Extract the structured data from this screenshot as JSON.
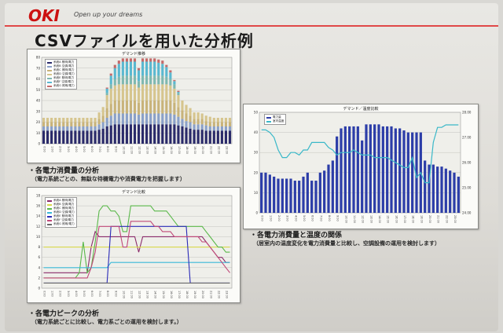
{
  "header": {
    "logo": "OKI",
    "tagline": "Open up your dreams",
    "accent": "#e04848"
  },
  "slide": {
    "title": "CSVファイルを用いた分析例"
  },
  "panels": {
    "consumption": {
      "title": "デマンド推移",
      "legend": [
        "系統A 照明/電力",
        "系統B 空調/電力",
        "系統C 照明/電力",
        "系統D 空調/電力",
        "系統E 照明/電力",
        "系統F 空調/電力",
        "系統G 照明/電力"
      ],
      "legend_colors": [
        "#2a2a6a",
        "#8aa0c8",
        "#c8b37a",
        "#d6c58e",
        "#7fb8b0",
        "#5ab8d0",
        "#c46a6a"
      ],
      "caption": "・各電力消費量の分析",
      "subcaption": "（電力系統ごとの、無駄な待機電力や消費電力を把握します）"
    },
    "peak": {
      "title": "デマンド比較",
      "legend": [
        "系統A 照明/電力",
        "系統B 空調/電力",
        "系統C 照明/電力",
        "系統D 空調/電力",
        "系統E 照明/電力",
        "系統F 空調/電力",
        "系統G 照明/電力"
      ],
      "legend_colors": [
        "#8a2a6a",
        "#d8d84a",
        "#5ab84a",
        "#38b8d8",
        "#2a2ab8",
        "#c04878",
        "#6a6a6a"
      ],
      "caption": "・各電力ピークの分析",
      "subcaption": "（電力系統ごとに比較し、電力系ごとの運用を検討します。）"
    },
    "temperature": {
      "title": "デマンド／温度比較",
      "legend": [
        "電力量",
        "室内温度"
      ],
      "legend_colors": [
        "#2c3da8",
        "#3ab8c8"
      ],
      "caption": "・各電力消費量と温度の関係",
      "subcaption": "（居室内の温度変化を電力消費量と比較し、空調設備の運用を検討します）"
    }
  },
  "chart_data": [
    {
      "type": "bar",
      "title": "デマンド推移",
      "stacked": true,
      "categories": [
        "0:00",
        "0:30",
        "1:00",
        "1:30",
        "2:00",
        "2:30",
        "3:00",
        "3:30",
        "4:00",
        "4:30",
        "5:00",
        "5:30",
        "6:00",
        "6:30",
        "7:00",
        "7:30",
        "8:00",
        "8:30",
        "9:00",
        "9:30",
        "10:00",
        "10:30",
        "11:00",
        "11:30",
        "12:00",
        "12:30",
        "13:00",
        "13:30",
        "14:00",
        "14:30",
        "15:00",
        "15:30",
        "16:00",
        "16:30",
        "17:00",
        "17:30",
        "18:00",
        "18:30",
        "19:00",
        "19:30",
        "20:00",
        "20:30",
        "21:00",
        "21:30",
        "22:00",
        "22:30",
        "23:00",
        "23:30"
      ],
      "series": [
        {
          "name": "系統A 照明/電力",
          "values": [
            12,
            12,
            12,
            12,
            12,
            12,
            12,
            12,
            12,
            12,
            12,
            12,
            12,
            12,
            13,
            14,
            16,
            17,
            18,
            18,
            18,
            18,
            18,
            18,
            18,
            18,
            18,
            18,
            18,
            18,
            18,
            18,
            18,
            18,
            17,
            16,
            15,
            14,
            13,
            13,
            13,
            12,
            12,
            12,
            12,
            12,
            12,
            12
          ]
        },
        {
          "name": "系統B 空調/電力",
          "values": [
            4,
            4,
            4,
            4,
            4,
            4,
            4,
            4,
            4,
            4,
            4,
            4,
            4,
            4,
            5,
            6,
            8,
            9,
            10,
            10,
            10,
            10,
            10,
            10,
            9,
            10,
            10,
            10,
            10,
            10,
            10,
            10,
            10,
            9,
            8,
            7,
            6,
            6,
            5,
            5,
            5,
            5,
            4,
            4,
            4,
            4,
            4,
            4
          ]
        },
        {
          "name": "系統C 照明/電力",
          "values": [
            4,
            4,
            4,
            4,
            4,
            4,
            4,
            4,
            4,
            4,
            4,
            4,
            4,
            4,
            5,
            6,
            9,
            11,
            12,
            12,
            12,
            12,
            12,
            12,
            11,
            12,
            12,
            12,
            12,
            12,
            12,
            12,
            12,
            11,
            9,
            8,
            7,
            6,
            5,
            5,
            5,
            4,
            4,
            4,
            4,
            4,
            4,
            4
          ]
        },
        {
          "name": "系統D 空調/電力",
          "values": [
            4,
            4,
            4,
            4,
            4,
            4,
            4,
            4,
            4,
            4,
            4,
            4,
            4,
            4,
            6,
            8,
            12,
            14,
            14,
            15,
            15,
            15,
            15,
            15,
            14,
            15,
            15,
            15,
            15,
            15,
            15,
            15,
            14,
            13,
            11,
            9,
            8,
            7,
            6,
            6,
            5,
            5,
            5,
            4,
            4,
            4,
            4,
            4
          ]
        },
        {
          "name": "系統E 照明/電力",
          "values": [
            0,
            0,
            0,
            0,
            0,
            0,
            0,
            0,
            0,
            0,
            0,
            0,
            0,
            0,
            0,
            0,
            2,
            4,
            6,
            7,
            8,
            8,
            8,
            8,
            6,
            8,
            8,
            8,
            8,
            8,
            8,
            7,
            6,
            4,
            2,
            0,
            0,
            0,
            0,
            0,
            0,
            0,
            0,
            0,
            0,
            0,
            0,
            0
          ]
        },
        {
          "name": "系統F 空調/電力",
          "values": [
            0,
            0,
            0,
            0,
            0,
            0,
            0,
            0,
            0,
            0,
            0,
            0,
            0,
            0,
            0,
            0,
            4,
            8,
            10,
            12,
            13,
            13,
            13,
            13,
            10,
            13,
            13,
            13,
            13,
            12,
            11,
            9,
            6,
            3,
            1,
            0,
            0,
            0,
            0,
            0,
            0,
            0,
            0,
            0,
            0,
            0,
            0,
            0
          ]
        },
        {
          "name": "系統G 照明/電力",
          "values": [
            0,
            0,
            0,
            0,
            0,
            0,
            0,
            0,
            0,
            0,
            0,
            0,
            0,
            0,
            0,
            0,
            1,
            2,
            3,
            3,
            3,
            3,
            3,
            3,
            2,
            3,
            3,
            3,
            3,
            3,
            3,
            2,
            2,
            1,
            1,
            0,
            0,
            0,
            0,
            0,
            0,
            0,
            0,
            0,
            0,
            0,
            0,
            0
          ]
        }
      ],
      "ylim": [
        0,
        80
      ],
      "grid": true,
      "legend_position": "top-left"
    },
    {
      "type": "line",
      "title": "デマンド比較",
      "x": [
        "0:00",
        "0:30",
        "1:00",
        "1:30",
        "2:00",
        "2:30",
        "3:00",
        "3:30",
        "4:00",
        "4:30",
        "5:00",
        "5:30",
        "6:00",
        "6:30",
        "7:00",
        "7:30",
        "8:00",
        "8:30",
        "9:00",
        "9:30",
        "10:00",
        "10:30",
        "11:00",
        "11:30",
        "12:00",
        "12:30",
        "13:00",
        "13:30",
        "14:00",
        "14:30",
        "15:00",
        "15:30",
        "16:00",
        "16:30",
        "17:00",
        "17:30",
        "18:00",
        "18:30",
        "19:00",
        "19:30",
        "20:00",
        "20:30",
        "21:00",
        "21:30",
        "22:00",
        "22:30",
        "23:00",
        "23:30"
      ],
      "series": [
        {
          "name": "系統A 照明/電力",
          "values": [
            3,
            3,
            3,
            3,
            3,
            3,
            3,
            3,
            3,
            3,
            3,
            3,
            8,
            11,
            10,
            10,
            10,
            10,
            10,
            10,
            10,
            10,
            10,
            10,
            7,
            10,
            10,
            10,
            10,
            10,
            10,
            10,
            10,
            10,
            10,
            10,
            10,
            10,
            10,
            10,
            10,
            9,
            8,
            7,
            6,
            6,
            5,
            5
          ]
        },
        {
          "name": "系統B 空調/電力",
          "values": [
            8,
            8,
            8,
            8,
            8,
            8,
            8,
            8,
            8,
            8,
            8,
            8,
            8,
            8,
            8,
            8,
            8,
            8,
            8,
            8,
            8,
            8,
            8,
            8,
            8,
            8,
            8,
            8,
            8,
            8,
            8,
            8,
            8,
            8,
            8,
            8,
            8,
            8,
            8,
            8,
            8,
            8,
            8,
            8,
            8,
            8,
            8,
            8
          ]
        },
        {
          "name": "系統C 照明/電力",
          "values": [
            2,
            2,
            2,
            2,
            2,
            2,
            2,
            2,
            2,
            3,
            9,
            3,
            4,
            9,
            15,
            16,
            16,
            15,
            15,
            14,
            11,
            11,
            16,
            16,
            16,
            16,
            16,
            16,
            15,
            15,
            15,
            15,
            14,
            13,
            12,
            12,
            12,
            12,
            12,
            12,
            12,
            11,
            10,
            9,
            8,
            8,
            7,
            7
          ]
        },
        {
          "name": "系統D 空調/電力",
          "values": [
            4,
            4,
            4,
            4,
            4,
            4,
            4,
            4,
            4,
            4,
            4,
            4,
            4,
            4,
            4,
            4,
            4,
            5,
            5,
            5,
            5,
            5,
            5,
            5,
            5,
            5,
            5,
            5,
            5,
            5,
            5,
            5,
            5,
            5,
            5,
            5,
            5,
            5,
            5,
            5,
            5,
            5,
            5,
            5,
            5,
            5,
            5,
            5
          ]
        },
        {
          "name": "系統E 照明/電力",
          "values": [
            1,
            1,
            1,
            1,
            1,
            1,
            1,
            1,
            1,
            1,
            1,
            1,
            1,
            1,
            1,
            1,
            1,
            12,
            12,
            12,
            12,
            12,
            12,
            12,
            12,
            12,
            12,
            12,
            12,
            12,
            12,
            12,
            12,
            12,
            12,
            12,
            12,
            1,
            1,
            1,
            1,
            1,
            1,
            1,
            1,
            1,
            1,
            1
          ]
        },
        {
          "name": "系統F 空調/電力",
          "values": [
            2,
            2,
            2,
            2,
            2,
            2,
            2,
            2,
            2,
            2,
            2,
            2,
            4,
            7,
            12,
            12,
            12,
            12,
            12,
            12,
            8,
            8,
            13,
            13,
            13,
            13,
            13,
            13,
            12,
            12,
            11,
            11,
            11,
            10,
            10,
            10,
            10,
            10,
            10,
            10,
            9,
            9,
            8,
            7,
            6,
            5,
            4,
            3
          ]
        },
        {
          "name": "系統G 照明/電力",
          "values": [
            1,
            1,
            1,
            1,
            1,
            1,
            1,
            1,
            1,
            1,
            1,
            1,
            1,
            1,
            1,
            1,
            1,
            1,
            1,
            1,
            1,
            1,
            1,
            1,
            1,
            1,
            1,
            1,
            1,
            1,
            1,
            1,
            1,
            1,
            1,
            1,
            1,
            1,
            1,
            1,
            1,
            1,
            1,
            1,
            1,
            1,
            1,
            1
          ]
        }
      ],
      "ylim": [
        0,
        18
      ],
      "grid": true,
      "legend_position": "top-left"
    },
    {
      "type": "bar",
      "title": "デマンド／温度比較",
      "categories": [
        "0:00",
        "0:30",
        "1:00",
        "1:30",
        "2:00",
        "2:30",
        "3:00",
        "3:30",
        "4:00",
        "4:30",
        "5:00",
        "5:30",
        "6:00",
        "6:30",
        "7:00",
        "7:30",
        "8:00",
        "8:30",
        "9:00",
        "9:30",
        "10:00",
        "10:30",
        "11:00",
        "11:30",
        "12:00",
        "12:30",
        "13:00",
        "13:30",
        "14:00",
        "14:30",
        "15:00",
        "15:30",
        "16:00",
        "16:30",
        "17:00",
        "17:30",
        "18:00",
        "18:30",
        "19:00",
        "19:30",
        "20:00",
        "20:30",
        "21:00",
        "21:30",
        "22:00",
        "22:30",
        "23:00",
        "23:30"
      ],
      "series": [
        {
          "name": "電力量",
          "type": "bar",
          "axis": "left",
          "values": [
            20,
            20,
            19,
            18,
            17,
            17,
            17,
            17,
            16,
            16,
            18,
            20,
            16,
            16,
            20,
            21,
            24,
            26,
            38,
            42,
            43,
            43,
            43,
            43,
            36,
            44,
            44,
            44,
            44,
            43,
            43,
            43,
            42,
            42,
            41,
            40,
            40,
            40,
            40,
            26,
            24,
            24,
            23,
            23,
            22,
            21,
            20,
            18
          ]
        },
        {
          "name": "室内温度",
          "type": "line",
          "axis": "right",
          "values": [
            27.3,
            27.3,
            27.2,
            27.0,
            26.5,
            26.2,
            26.2,
            26.4,
            26.4,
            26.3,
            26.5,
            26.5,
            26.8,
            26.8,
            26.8,
            26.8,
            26.6,
            26.5,
            26.3,
            26.4,
            26.4,
            26.4,
            26.5,
            26.4,
            26.3,
            26.3,
            26.3,
            26.2,
            26.2,
            26.2,
            26.2,
            26.1,
            26.0,
            25.9,
            25.8,
            25.8,
            26.2,
            25.4,
            25.6,
            25.2,
            25.2,
            26.8,
            27.4,
            27.4,
            27.5,
            27.5,
            27.5,
            27.5
          ]
        }
      ],
      "ylim": [
        0,
        50
      ],
      "y2lim": [
        24.0,
        28.0
      ],
      "grid": true,
      "legend_position": "top-left"
    }
  ]
}
